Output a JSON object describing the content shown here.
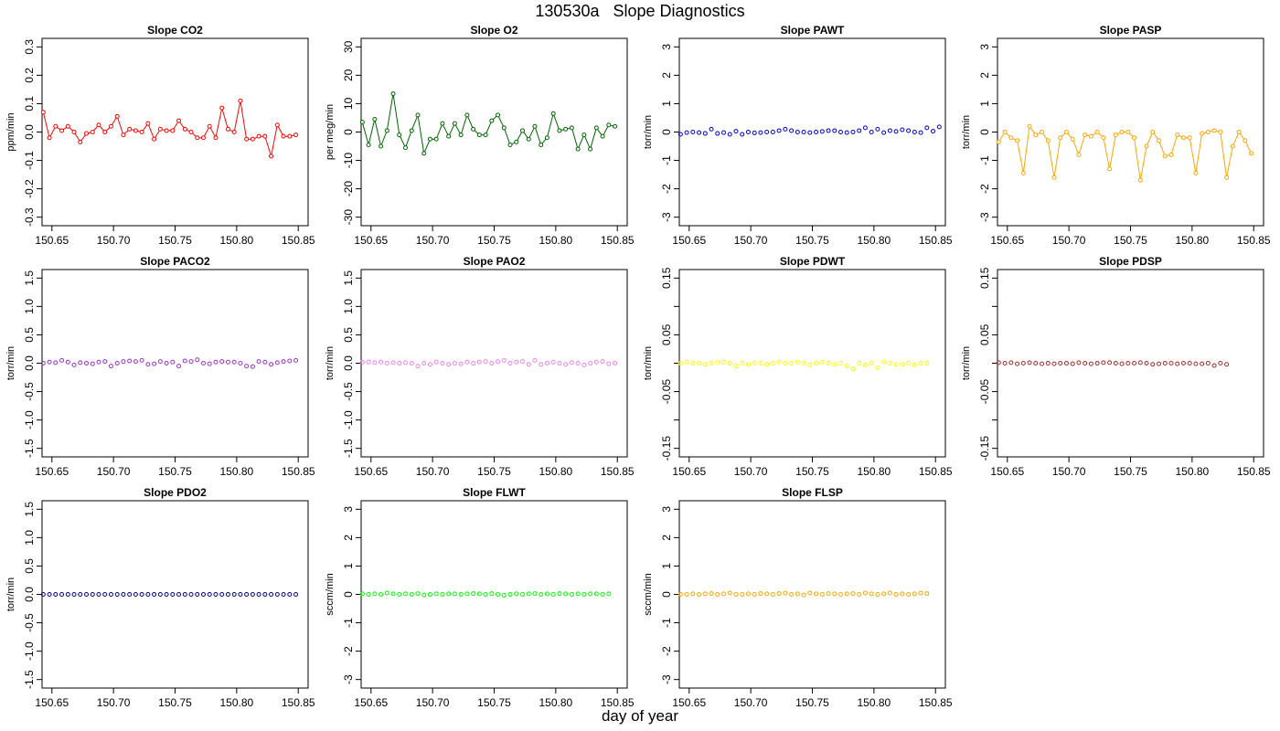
{
  "figure": {
    "title": "130530a   Slope Diagnostics",
    "xlabel": "day of year"
  },
  "chart_data": [
    {
      "type": "line",
      "title": "Slope CO2",
      "ylabel": "ppm/min",
      "color": "#ff0000",
      "xlim": [
        150.642,
        150.858
      ],
      "ylim": [
        -0.33,
        0.33
      ],
      "yticks": [
        "-0.3",
        "-0.2",
        "-0.1",
        "0.0",
        "0.1",
        "0.2",
        "0.3"
      ],
      "xticks": [
        "150.65",
        "150.70",
        "150.75",
        "150.80",
        "150.85"
      ],
      "x_start": 150.643,
      "x_step": 0.005,
      "values": [
        0.07,
        -0.02,
        0.02,
        0.005,
        0.02,
        0.0,
        -0.035,
        -0.005,
        0.0,
        0.025,
        0.0,
        0.02,
        0.055,
        -0.01,
        0.01,
        0.005,
        0.0,
        0.03,
        -0.025,
        0.01,
        0.005,
        0.005,
        0.04,
        0.01,
        0.0,
        -0.02,
        -0.02,
        0.02,
        -0.02,
        0.085,
        0.01,
        0.0,
        0.11,
        -0.025,
        -0.025,
        -0.015,
        -0.015,
        -0.085,
        0.025,
        -0.015,
        -0.015,
        -0.01
      ],
      "line": true
    },
    {
      "type": "line",
      "title": "Slope O2",
      "ylabel": "per meg/min",
      "color": "#006400",
      "xlim": [
        150.642,
        150.858
      ],
      "ylim": [
        -33,
        33
      ],
      "yticks": [
        "-30",
        "-20",
        "-10",
        "0",
        "10",
        "20",
        "30"
      ],
      "xticks": [
        "150.65",
        "150.70",
        "150.75",
        "150.80",
        "150.85"
      ],
      "x_start": 150.643,
      "x_step": 0.005,
      "values": [
        3.5,
        -4.5,
        4.5,
        -5.0,
        0.5,
        13.5,
        -1.0,
        -5.5,
        0.5,
        6.0,
        -7.5,
        -2.5,
        -2.5,
        3.0,
        -1.5,
        3.0,
        -1.0,
        6.0,
        1.0,
        -1.0,
        -1.0,
        4.0,
        6.0,
        1.5,
        -4.5,
        -3.5,
        0.5,
        -2.5,
        2.0,
        -4.5,
        -2.0,
        6.5,
        0.5,
        1.0,
        1.5,
        -6.0,
        -1.0,
        -6.0,
        1.5,
        -1.5,
        2.5,
        2.0
      ],
      "line": true
    },
    {
      "type": "scatter",
      "title": "Slope PAWT",
      "ylabel": "torr/min",
      "color": "#0000cd",
      "xlim": [
        150.642,
        150.858
      ],
      "ylim": [
        -3.3,
        3.3
      ],
      "yticks": [
        "-3",
        "-2",
        "-1",
        "0",
        "1",
        "2",
        "3"
      ],
      "xticks": [
        "150.65",
        "150.70",
        "150.75",
        "150.80",
        "150.85"
      ],
      "x_start": 150.643,
      "x_step": 0.005,
      "values": [
        -0.08,
        -0.02,
        0.0,
        -0.02,
        -0.05,
        0.1,
        -0.05,
        -0.02,
        -0.08,
        0.03,
        -0.08,
        0.0,
        -0.03,
        -0.02,
        0.0,
        0.0,
        0.05,
        0.1,
        0.05,
        0.0,
        0.0,
        -0.02,
        0.0,
        0.02,
        0.05,
        0.05,
        0.0,
        -0.02,
        0.0,
        0.05,
        0.15,
        0.0,
        0.1,
        -0.02,
        0.05,
        0.02,
        0.08,
        0.05,
        0.0,
        -0.02,
        0.15,
        0.03,
        0.18
      ],
      "line": false
    },
    {
      "type": "line",
      "title": "Slope PASP",
      "ylabel": "torr/min",
      "color": "#ffa500",
      "xlim": [
        150.642,
        150.858
      ],
      "ylim": [
        -3.3,
        3.3
      ],
      "yticks": [
        "-3",
        "-2",
        "-1",
        "0",
        "1",
        "2",
        "3"
      ],
      "xticks": [
        "150.65",
        "150.70",
        "150.75",
        "150.80",
        "150.85"
      ],
      "x_start": 150.643,
      "x_step": 0.005,
      "values": [
        -0.35,
        0.0,
        -0.2,
        -0.3,
        -1.45,
        0.2,
        -0.1,
        0.0,
        -0.3,
        -1.6,
        -0.2,
        0.0,
        -0.25,
        -0.8,
        -0.1,
        -0.15,
        0.0,
        -0.2,
        -1.3,
        -0.1,
        0.0,
        0.0,
        -0.2,
        -1.7,
        -0.5,
        0.0,
        -0.3,
        -0.85,
        -0.8,
        -0.1,
        -0.2,
        -0.2,
        -1.45,
        -0.05,
        0.0,
        0.05,
        0.0,
        -1.6,
        -0.5,
        0.0,
        -0.3,
        -0.75
      ],
      "line": true
    },
    {
      "type": "scatter",
      "title": "Slope PACO2",
      "ylabel": "torr/min",
      "color": "#9932cc",
      "xlim": [
        150.642,
        150.858
      ],
      "ylim": [
        -1.65,
        1.65
      ],
      "yticks": [
        "-1.5",
        "-1.0",
        "-0.5",
        "0.0",
        "0.5",
        "1.0",
        "1.5"
      ],
      "xticks": [
        "150.65",
        "150.70",
        "150.75",
        "150.80",
        "150.85"
      ],
      "x_start": 150.643,
      "x_step": 0.005,
      "values": [
        0.0,
        0.02,
        0.01,
        0.05,
        0.02,
        -0.03,
        0.01,
        0.0,
        -0.01,
        0.02,
        0.03,
        -0.05,
        0.0,
        0.03,
        0.04,
        0.03,
        0.05,
        -0.02,
        -0.01,
        0.03,
        0.0,
        0.02,
        -0.05,
        0.04,
        0.03,
        0.06,
        0.0,
        -0.01,
        0.02,
        0.03,
        0.02,
        0.02,
        0.0,
        -0.05,
        -0.06,
        0.03,
        0.02,
        -0.02,
        0.01,
        0.03,
        0.04,
        0.05
      ],
      "line": false
    },
    {
      "type": "scatter",
      "title": "Slope PAO2",
      "ylabel": "torr/min",
      "color": "#ee82ee",
      "xlim": [
        150.642,
        150.858
      ],
      "ylim": [
        -1.65,
        1.65
      ],
      "yticks": [
        "-1.5",
        "-1.0",
        "-0.5",
        "0.0",
        "0.5",
        "1.0",
        "1.5"
      ],
      "xticks": [
        "150.65",
        "150.70",
        "150.75",
        "150.80",
        "150.85"
      ],
      "x_start": 150.643,
      "x_step": 0.005,
      "values": [
        0.02,
        0.02,
        0.01,
        0.02,
        0.0,
        0.01,
        0.0,
        0.01,
        0.0,
        -0.05,
        0.0,
        -0.02,
        0.02,
        0.0,
        -0.02,
        0.0,
        -0.01,
        0.02,
        0.0,
        0.02,
        0.03,
        0.0,
        0.03,
        0.05,
        0.0,
        0.02,
        0.03,
        -0.02,
        0.05,
        -0.02,
        0.0,
        0.02,
        0.0,
        -0.02,
        0.01,
        0.0,
        -0.03,
        0.0,
        0.02,
        0.03,
        -0.01,
        0.0
      ],
      "line": false
    },
    {
      "type": "scatter",
      "title": "Slope PDWT",
      "ylabel": "torr/min",
      "color": "#ffff00",
      "xlim": [
        150.642,
        150.858
      ],
      "ylim": [
        -0.165,
        0.165
      ],
      "yticks": [
        "-0.15",
        "-0.05",
        "0.05",
        "0.15"
      ],
      "minor_yticks": [
        -0.1,
        0.0,
        0.1
      ],
      "xticks": [
        "150.65",
        "150.70",
        "150.75",
        "150.80",
        "150.85"
      ],
      "x_start": 150.643,
      "x_step": 0.005,
      "values": [
        0.0,
        0.002,
        0.0,
        0.0,
        -0.002,
        0.0,
        0.002,
        0.002,
        0.0,
        -0.005,
        0.0,
        -0.002,
        0.0,
        0.0,
        -0.002,
        0.0,
        0.002,
        0.0,
        0.0,
        0.002,
        0.0,
        -0.003,
        0.0,
        0.002,
        0.0,
        -0.002,
        0.0,
        -0.005,
        -0.01,
        0.0,
        -0.003,
        0.0,
        -0.008,
        0.002,
        0.0,
        -0.002,
        -0.002,
        0.0,
        -0.003,
        0.0,
        0.0
      ],
      "line": false
    },
    {
      "type": "scatter",
      "title": "Slope PDSP",
      "ylabel": "torr/min",
      "color": "#a52a2a",
      "xlim": [
        150.642,
        150.858
      ],
      "ylim": [
        -0.165,
        0.165
      ],
      "yticks": [
        "-0.15",
        "-0.05",
        "0.05",
        "0.15"
      ],
      "minor_yticks": [
        -0.1,
        0.0,
        0.1
      ],
      "xticks": [
        "150.65",
        "150.70",
        "150.75",
        "150.80",
        "150.85"
      ],
      "x_start": 150.643,
      "x_step": 0.005,
      "values": [
        0.001,
        0.0,
        0.001,
        -0.001,
        0.0,
        0.001,
        0.0,
        -0.001,
        0.0,
        -0.001,
        0.0,
        0.0,
        -0.001,
        0.001,
        0.0,
        -0.001,
        0.0,
        0.001,
        0.001,
        0.0,
        -0.001,
        0.0,
        0.0,
        0.001,
        0.0,
        -0.002,
        -0.001,
        0.0,
        0.0,
        -0.001,
        0.0,
        0.0,
        -0.001,
        -0.001,
        0.0,
        -0.004,
        0.0,
        -0.002
      ],
      "line": false
    },
    {
      "type": "scatter",
      "title": "Slope PDO2",
      "ylabel": "torr/min",
      "color": "#00008b",
      "xlim": [
        150.642,
        150.858
      ],
      "ylim": [
        -1.65,
        1.65
      ],
      "yticks": [
        "-1.5",
        "-1.0",
        "-0.5",
        "0.0",
        "0.5",
        "1.0",
        "1.5"
      ],
      "xticks": [
        "150.65",
        "150.70",
        "150.75",
        "150.80",
        "150.85"
      ],
      "x_start": 150.643,
      "x_step": 0.005,
      "values": [
        0.0,
        0.0,
        0.0,
        0.0,
        0.0,
        0.0,
        0.0,
        0.0,
        0.0,
        0.0,
        0.0,
        0.0,
        0.0,
        0.0,
        0.0,
        0.0,
        0.0,
        0.0,
        0.0,
        0.0,
        0.0,
        0.0,
        0.0,
        0.0,
        0.0,
        0.0,
        0.0,
        0.0,
        0.0,
        0.0,
        0.0,
        0.0,
        0.0,
        0.0,
        0.0,
        0.0,
        0.0,
        0.0,
        0.0,
        0.0,
        0.0,
        0.0
      ],
      "line": false
    },
    {
      "type": "scatter",
      "title": "Slope FLWT",
      "ylabel": "sccm/min",
      "color": "#00ff00",
      "xlim": [
        150.642,
        150.858
      ],
      "ylim": [
        -3.3,
        3.3
      ],
      "yticks": [
        "-3",
        "-2",
        "-1",
        "0",
        "1",
        "2",
        "3"
      ],
      "xticks": [
        "150.65",
        "150.70",
        "150.75",
        "150.80",
        "150.85"
      ],
      "x_start": 150.643,
      "x_step": 0.005,
      "values": [
        0.02,
        0.0,
        0.02,
        0.0,
        0.05,
        0.02,
        0.0,
        0.02,
        0.0,
        0.03,
        -0.02,
        0.0,
        0.02,
        0.0,
        0.02,
        0.02,
        0.0,
        0.02,
        0.03,
        0.02,
        0.0,
        0.03,
        0.0,
        -0.03,
        0.0,
        0.02,
        0.0,
        0.02,
        0.03,
        0.0,
        0.02,
        0.0,
        0.03,
        0.02,
        0.0,
        0.02,
        0.0,
        0.02,
        0.02,
        0.0,
        0.02
      ],
      "line": false
    },
    {
      "type": "scatter",
      "title": "Slope FLSP",
      "ylabel": "sccm/min",
      "color": "#ffa500",
      "xlim": [
        150.642,
        150.858
      ],
      "ylim": [
        -3.3,
        3.3
      ],
      "yticks": [
        "-3",
        "-2",
        "-1",
        "0",
        "1",
        "2",
        "3"
      ],
      "xticks": [
        "150.65",
        "150.70",
        "150.75",
        "150.80",
        "150.85"
      ],
      "x_start": 150.643,
      "x_step": 0.005,
      "values": [
        0.0,
        0.0,
        0.02,
        0.0,
        0.02,
        0.03,
        0.0,
        0.02,
        0.05,
        0.0,
        0.0,
        0.02,
        0.0,
        0.03,
        0.02,
        0.0,
        0.03,
        0.05,
        0.0,
        0.02,
        -0.02,
        0.05,
        0.02,
        0.0,
        0.03,
        0.02,
        0.0,
        0.02,
        0.03,
        0.0,
        0.05,
        0.02,
        0.0,
        0.02,
        0.05,
        0.0,
        0.02,
        0.0,
        0.02,
        0.05,
        0.03
      ],
      "line": false
    }
  ]
}
